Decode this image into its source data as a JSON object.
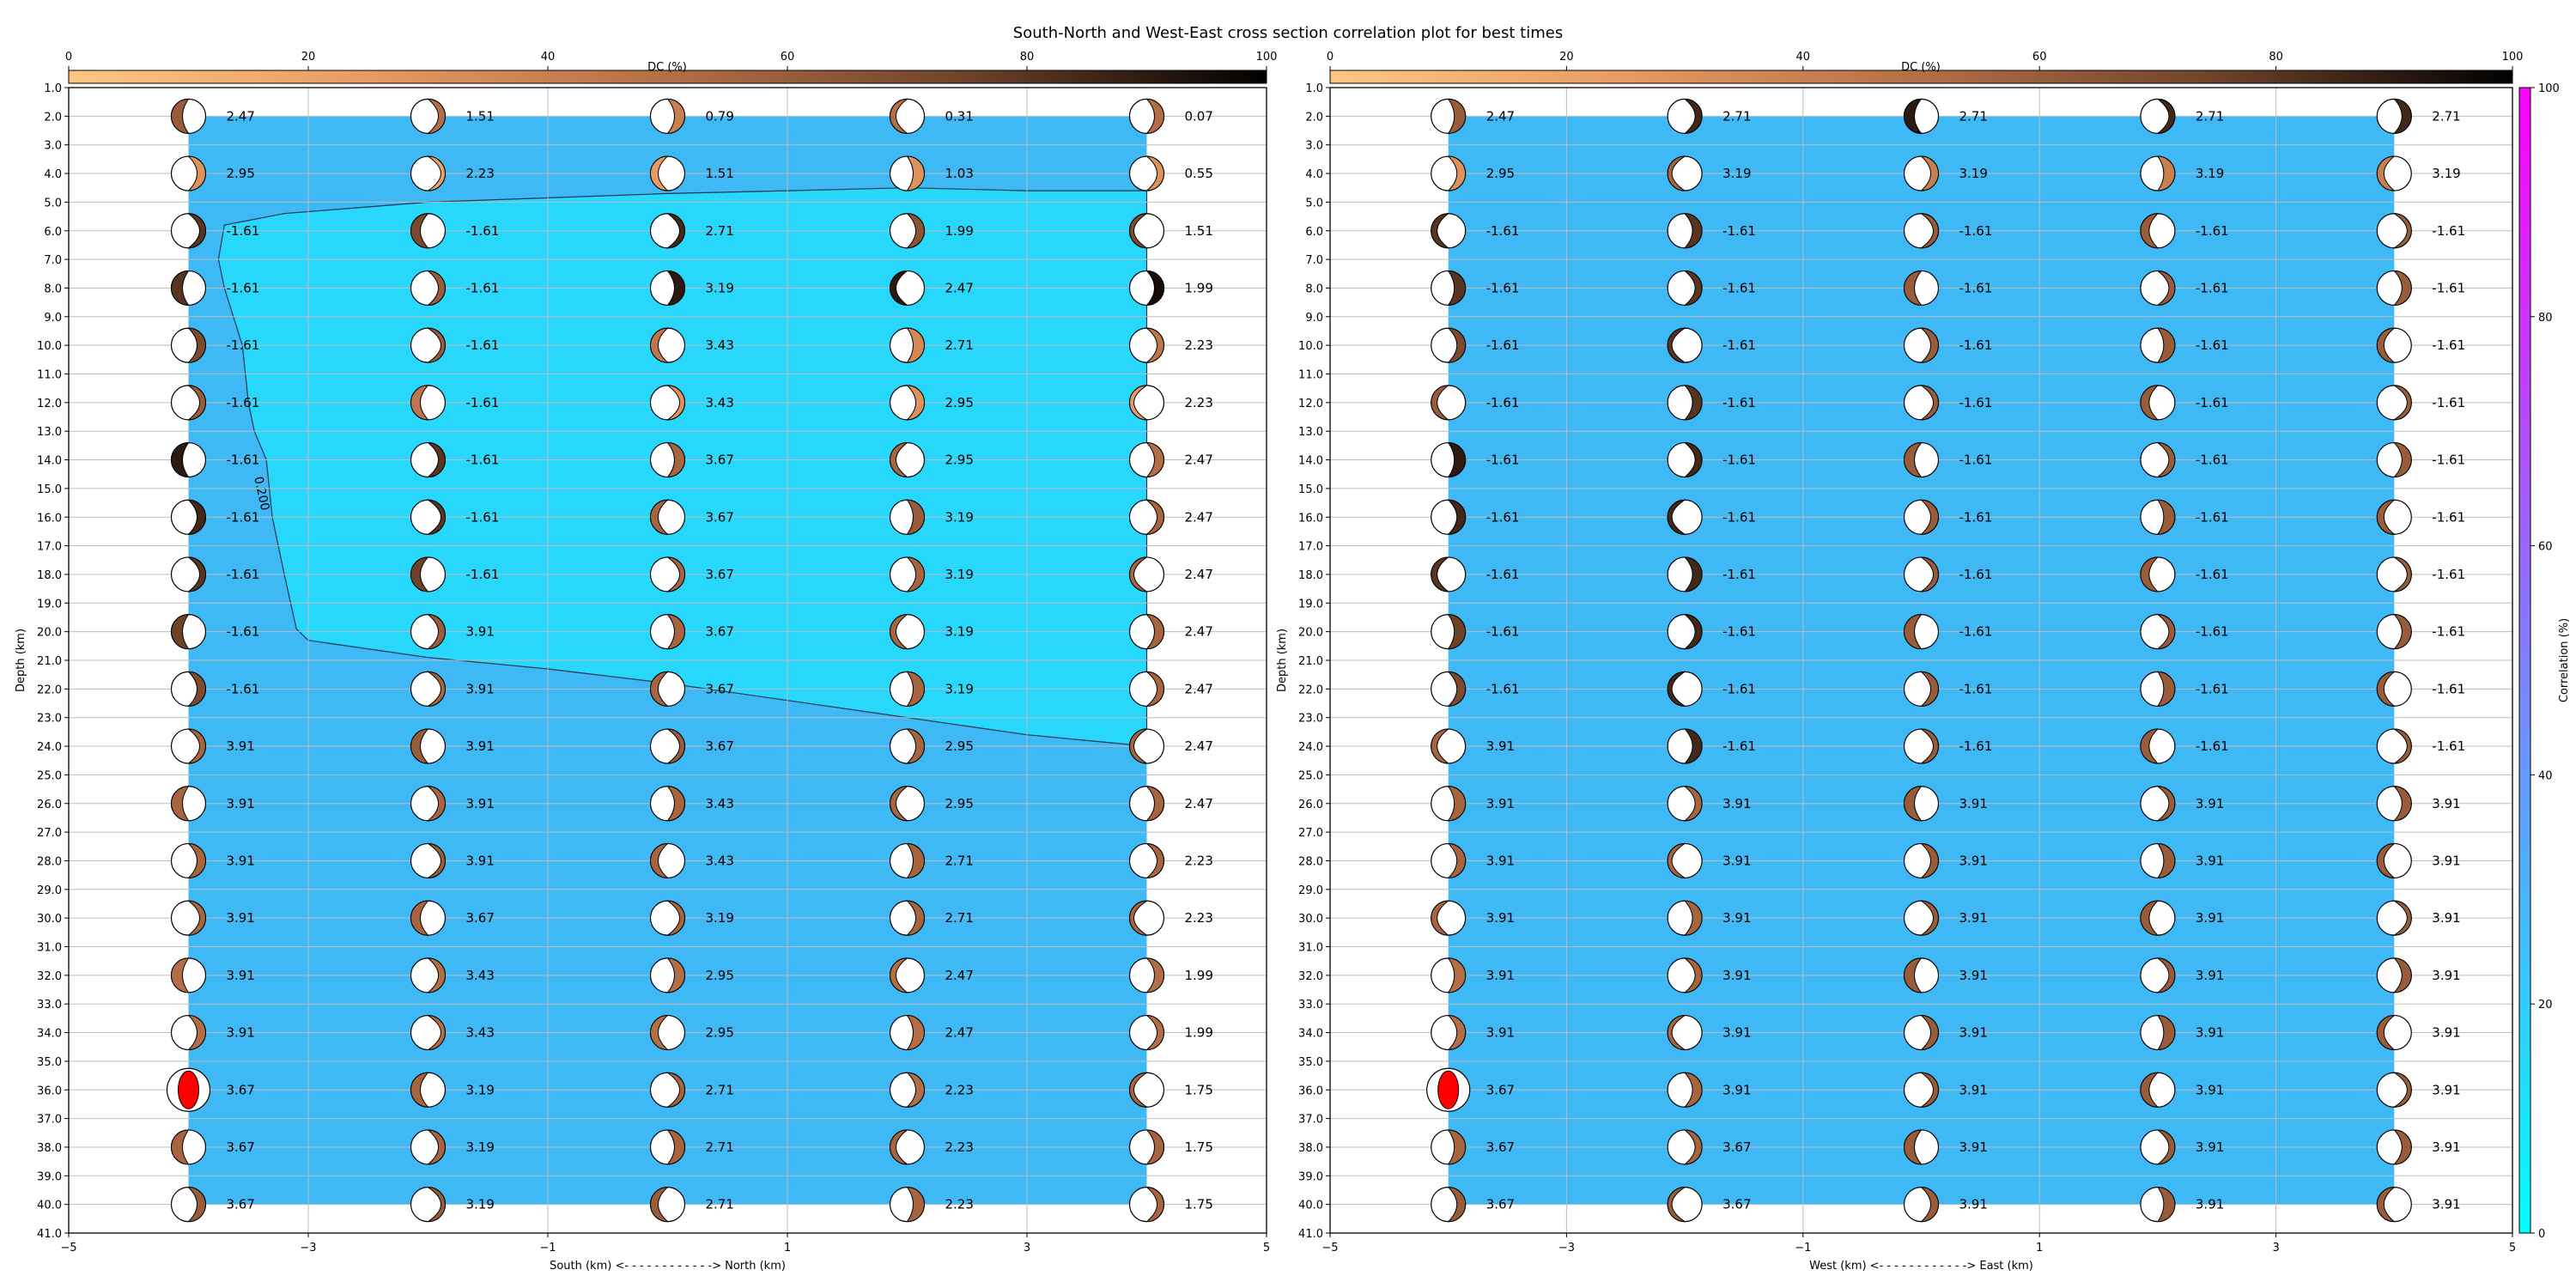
{
  "title": "South-North and West-East cross section correlation plot for best times",
  "colors": {
    "background_field": "#3FB8F6",
    "contour_fill": "#28D8FC",
    "grid": "#BDBDBD",
    "beachball_white": "#FFFFFF",
    "isotropic_marker": "#FF0000"
  },
  "dc_colorbar": {
    "label": "DC (%)",
    "ticks": [
      0,
      20,
      40,
      60,
      80,
      100
    ],
    "colormap": "copper_r"
  },
  "corr_colorbar": {
    "label": "Correlation (%)",
    "ticks": [
      0,
      20,
      40,
      60,
      80,
      100
    ],
    "colormap": "cool"
  },
  "chart_data": [
    {
      "type": "scatter",
      "panel": "south-north",
      "xlabel": "South (km) <- - - - - - - - - - - -> North (km)",
      "ylabel": "Depth (km)",
      "xlim": [
        -5,
        5
      ],
      "ylim": [
        41,
        1
      ],
      "xticks": [
        -5,
        -3,
        -1,
        1,
        3,
        5
      ],
      "depth_ticks": [
        "1.0",
        "2.0",
        "3.0",
        "4.0",
        "5.0",
        "6.0",
        "7.0",
        "8.0",
        "9.0",
        "10.0",
        "11.0",
        "12.0",
        "13.0",
        "14.0",
        "15.0",
        "16.0",
        "17.0",
        "18.0",
        "19.0",
        "20.0",
        "21.0",
        "22.0",
        "23.0",
        "24.0",
        "25.0",
        "26.0",
        "27.0",
        "28.0",
        "29.0",
        "30.0",
        "31.0",
        "32.0",
        "33.0",
        "34.0",
        "35.0",
        "36.0",
        "37.0",
        "38.0",
        "39.0",
        "40.0",
        "41.0"
      ],
      "x": [
        -4,
        -2,
        0,
        2,
        4
      ],
      "depths": [
        2,
        4,
        6,
        8,
        10,
        12,
        14,
        16,
        18,
        20,
        22,
        24,
        26,
        28,
        30,
        32,
        34,
        36,
        38,
        40
      ],
      "grid": true,
      "contour_label": "0.200",
      "contour_polygon": [
        [
          -3.7,
          5.8
        ],
        [
          -3.2,
          5.4
        ],
        [
          -2.0,
          5.0
        ],
        [
          0.0,
          4.7
        ],
        [
          1.0,
          4.6
        ],
        [
          2.0,
          4.5
        ],
        [
          3.0,
          4.6
        ],
        [
          4.0,
          4.6
        ],
        [
          4.0,
          24.0
        ],
        [
          3.0,
          23.6
        ],
        [
          2.0,
          23.0
        ],
        [
          1.0,
          22.4
        ],
        [
          0.0,
          21.8
        ],
        [
          -1.0,
          21.3
        ],
        [
          -2.0,
          20.9
        ],
        [
          -3.0,
          20.3
        ],
        [
          -3.1,
          19.9
        ],
        [
          -3.2,
          18.0
        ],
        [
          -3.3,
          16.0
        ],
        [
          -3.35,
          14.0
        ],
        [
          -3.45,
          13.0
        ],
        [
          -3.5,
          12.0
        ],
        [
          -3.55,
          10.0
        ],
        [
          -3.7,
          8.0
        ],
        [
          -3.75,
          7.0
        ]
      ],
      "labels": [
        [
          "2.47",
          "1.51",
          "0.79",
          "0.31",
          "0.07"
        ],
        [
          "2.95",
          "2.23",
          "1.51",
          "1.03",
          "0.55"
        ],
        [
          "-1.61",
          "-1.61",
          "2.71",
          "1.99",
          "1.51"
        ],
        [
          "-1.61",
          "-1.61",
          "3.19",
          "2.47",
          "1.99"
        ],
        [
          "-1.61",
          "-1.61",
          "3.43",
          "2.71",
          "2.23"
        ],
        [
          "-1.61",
          "-1.61",
          "3.43",
          "2.95",
          "2.23"
        ],
        [
          "-1.61",
          "-1.61",
          "3.67",
          "2.95",
          "2.47"
        ],
        [
          "-1.61",
          "-1.61",
          "3.67",
          "3.19",
          "2.47"
        ],
        [
          "-1.61",
          "-1.61",
          "3.67",
          "3.19",
          "2.47"
        ],
        [
          "-1.61",
          "3.91",
          "3.67",
          "3.19",
          "2.47"
        ],
        [
          "-1.61",
          "3.91",
          "3.67",
          "3.19",
          "2.47"
        ],
        [
          "3.91",
          "3.91",
          "3.67",
          "2.95",
          "2.47"
        ],
        [
          "3.91",
          "3.91",
          "3.43",
          "2.95",
          "2.47"
        ],
        [
          "3.91",
          "3.91",
          "3.43",
          "2.71",
          "2.23"
        ],
        [
          "3.91",
          "3.67",
          "3.19",
          "2.71",
          "2.23"
        ],
        [
          "3.91",
          "3.43",
          "2.95",
          "2.47",
          "1.99"
        ],
        [
          "3.91",
          "3.43",
          "2.95",
          "2.47",
          "1.99"
        ],
        [
          "3.67",
          "3.19",
          "2.71",
          "2.23",
          "1.75"
        ],
        [
          "3.67",
          "3.19",
          "2.71",
          "2.23",
          "1.75"
        ],
        [
          "3.67",
          "3.19",
          "2.71",
          "2.23",
          "1.75"
        ]
      ],
      "dc_percent": [
        [
          60,
          50,
          40,
          50,
          50
        ],
        [
          30,
          20,
          25,
          30,
          30
        ],
        [
          80,
          70,
          85,
          65,
          70
        ],
        [
          80,
          60,
          90,
          90,
          95
        ],
        [
          70,
          60,
          45,
          35,
          45
        ],
        [
          60,
          45,
          30,
          30,
          25
        ],
        [
          90,
          80,
          55,
          55,
          50
        ],
        [
          85,
          80,
          55,
          60,
          55
        ],
        [
          80,
          75,
          55,
          55,
          55
        ],
        [
          75,
          60,
          55,
          55,
          55
        ],
        [
          70,
          55,
          55,
          55,
          55
        ],
        [
          55,
          60,
          60,
          55,
          55
        ],
        [
          55,
          55,
          55,
          55,
          55
        ],
        [
          55,
          60,
          55,
          55,
          55
        ],
        [
          55,
          55,
          55,
          55,
          55
        ],
        [
          50,
          50,
          50,
          50,
          50
        ],
        [
          50,
          50,
          50,
          50,
          50
        ],
        [
          0,
          55,
          55,
          50,
          55
        ],
        [
          55,
          55,
          55,
          55,
          55
        ],
        [
          60,
          60,
          60,
          55,
          55
        ]
      ],
      "correlation_percent": 22
    },
    {
      "type": "scatter",
      "panel": "west-east",
      "xlabel": "West (km) <- - - - - - - - - - - -> East (km)",
      "ylabel": "Depth (km)",
      "xlim": [
        -5,
        5
      ],
      "ylim": [
        41,
        1
      ],
      "xticks": [
        -5,
        -3,
        -1,
        1,
        3,
        5
      ],
      "depth_ticks": [
        "1.0",
        "2.0",
        "3.0",
        "4.0",
        "5.0",
        "6.0",
        "7.0",
        "8.0",
        "9.0",
        "10.0",
        "11.0",
        "12.0",
        "13.0",
        "14.0",
        "15.0",
        "16.0",
        "17.0",
        "18.0",
        "19.0",
        "20.0",
        "21.0",
        "22.0",
        "23.0",
        "24.0",
        "25.0",
        "26.0",
        "27.0",
        "28.0",
        "29.0",
        "30.0",
        "31.0",
        "32.0",
        "33.0",
        "34.0",
        "35.0",
        "36.0",
        "37.0",
        "38.0",
        "39.0",
        "40.0",
        "41.0"
      ],
      "x": [
        -4,
        -2,
        0,
        2,
        4
      ],
      "depths": [
        2,
        4,
        6,
        8,
        10,
        12,
        14,
        16,
        18,
        20,
        22,
        24,
        26,
        28,
        30,
        32,
        34,
        36,
        38,
        40
      ],
      "grid": true,
      "labels": [
        [
          "2.47",
          "2.71",
          "2.71",
          "2.71",
          "2.71"
        ],
        [
          "2.95",
          "3.19",
          "3.19",
          "3.19",
          "3.19"
        ],
        [
          "-1.61",
          "-1.61",
          "-1.61",
          "-1.61",
          "-1.61"
        ],
        [
          "-1.61",
          "-1.61",
          "-1.61",
          "-1.61",
          "-1.61"
        ],
        [
          "-1.61",
          "-1.61",
          "-1.61",
          "-1.61",
          "-1.61"
        ],
        [
          "-1.61",
          "-1.61",
          "-1.61",
          "-1.61",
          "-1.61"
        ],
        [
          "-1.61",
          "-1.61",
          "-1.61",
          "-1.61",
          "-1.61"
        ],
        [
          "-1.61",
          "-1.61",
          "-1.61",
          "-1.61",
          "-1.61"
        ],
        [
          "-1.61",
          "-1.61",
          "-1.61",
          "-1.61",
          "-1.61"
        ],
        [
          "-1.61",
          "-1.61",
          "-1.61",
          "-1.61",
          "-1.61"
        ],
        [
          "-1.61",
          "-1.61",
          "-1.61",
          "-1.61",
          "-1.61"
        ],
        [
          "3.91",
          "-1.61",
          "-1.61",
          "-1.61",
          "-1.61"
        ],
        [
          "3.91",
          "3.91",
          "3.91",
          "3.91",
          "3.91"
        ],
        [
          "3.91",
          "3.91",
          "3.91",
          "3.91",
          "3.91"
        ],
        [
          "3.91",
          "3.91",
          "3.91",
          "3.91",
          "3.91"
        ],
        [
          "3.91",
          "3.91",
          "3.91",
          "3.91",
          "3.91"
        ],
        [
          "3.91",
          "3.91",
          "3.91",
          "3.91",
          "3.91"
        ],
        [
          "3.67",
          "3.91",
          "3.91",
          "3.91",
          "3.91"
        ],
        [
          "3.67",
          "3.67",
          "3.91",
          "3.91",
          "3.91"
        ],
        [
          "3.67",
          "3.67",
          "3.91",
          "3.91",
          "3.91"
        ]
      ],
      "dc_percent": [
        [
          60,
          85,
          90,
          85,
          85
        ],
        [
          30,
          55,
          40,
          40,
          40
        ],
        [
          80,
          80,
          60,
          60,
          60
        ],
        [
          80,
          80,
          60,
          60,
          60
        ],
        [
          70,
          80,
          60,
          60,
          60
        ],
        [
          60,
          80,
          60,
          60,
          60
        ],
        [
          90,
          85,
          60,
          60,
          60
        ],
        [
          85,
          85,
          60,
          60,
          60
        ],
        [
          80,
          85,
          60,
          60,
          60
        ],
        [
          75,
          85,
          60,
          60,
          60
        ],
        [
          70,
          85,
          60,
          60,
          60
        ],
        [
          55,
          85,
          60,
          60,
          60
        ],
        [
          55,
          55,
          60,
          60,
          60
        ],
        [
          55,
          55,
          60,
          60,
          60
        ],
        [
          55,
          55,
          60,
          60,
          60
        ],
        [
          50,
          55,
          60,
          60,
          60
        ],
        [
          50,
          55,
          60,
          60,
          60
        ],
        [
          0,
          55,
          60,
          60,
          60
        ],
        [
          55,
          55,
          60,
          60,
          60
        ],
        [
          60,
          60,
          60,
          60,
          60
        ]
      ],
      "correlation_percent": 22
    }
  ]
}
